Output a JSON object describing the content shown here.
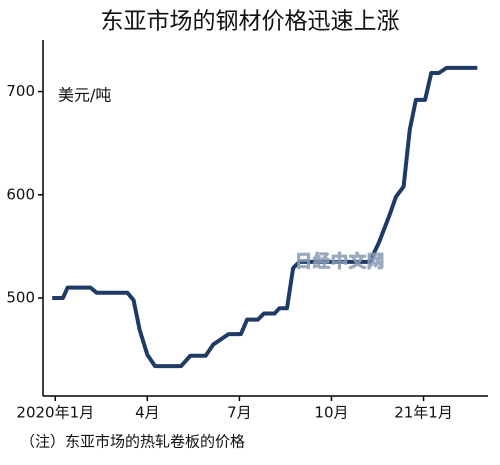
{
  "chart_data": {
    "type": "line",
    "title": "东亚市场的钢材价格迅速上涨",
    "y_label": "美元/吨",
    "note": "（注）东亚市场的热轧卷板的价格",
    "watermark": "日经中文网",
    "series": [
      {
        "color": "#1f3a64",
        "x": [
          -0.1,
          0.25,
          0.4,
          1.15,
          1.35,
          2.35,
          2.55,
          2.75,
          3.0,
          3.25,
          4.1,
          4.4,
          4.9,
          5.15,
          5.65,
          6.05,
          6.25,
          6.6,
          6.8,
          7.15,
          7.3,
          7.55,
          7.75,
          7.95,
          10.25,
          10.55,
          10.9,
          11.1,
          11.35,
          11.55,
          11.75,
          12.05,
          12.25,
          12.5,
          12.75,
          13.75
        ],
        "values": [
          500,
          500,
          510,
          510,
          505,
          505,
          498,
          469,
          445,
          434,
          434,
          444,
          444,
          455,
          465,
          465,
          479,
          479,
          485,
          485,
          490,
          490,
          529,
          535,
          535,
          554,
          581,
          598,
          608,
          663,
          692,
          692,
          718,
          718,
          723,
          723
        ]
      }
    ],
    "xlim": [
      -0.4,
      14.1
    ],
    "ylim": [
      405,
      750
    ],
    "xticks": [
      {
        "value": 0,
        "label": "2020年1月"
      },
      {
        "value": 3,
        "label": "4月"
      },
      {
        "value": 6,
        "label": "7月"
      },
      {
        "value": 9,
        "label": "10月"
      },
      {
        "value": 12,
        "label": "21年1月"
      }
    ],
    "yticks": [
      500,
      600,
      700
    ]
  }
}
